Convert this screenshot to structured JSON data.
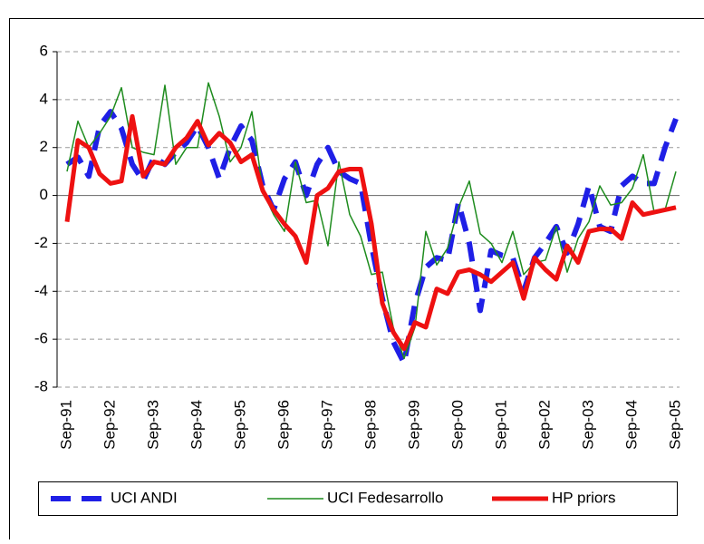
{
  "chart_data": {
    "type": "line",
    "categories": [
      "Sep-91",
      null,
      null,
      null,
      "Sep-92",
      null,
      null,
      null,
      "Sep-93",
      null,
      null,
      null,
      "Sep-94",
      null,
      null,
      null,
      "Sep-95",
      null,
      null,
      null,
      "Sep-96",
      null,
      null,
      null,
      "Sep-97",
      null,
      null,
      null,
      "Sep-98",
      null,
      null,
      null,
      "Sep-99",
      null,
      null,
      null,
      "Sep-00",
      null,
      null,
      null,
      "Sep-01",
      null,
      null,
      null,
      "Sep-02",
      null,
      null,
      null,
      "Sep-03",
      null,
      null,
      null,
      "Sep-04",
      null,
      null,
      null,
      "Sep-05"
    ],
    "series": [
      {
        "name": "UCI ANDI",
        "color": "#1f1fe6",
        "style": "dashed",
        "values": [
          1.3,
          1.6,
          0.8,
          2.9,
          3.5,
          2.8,
          1.3,
          0.6,
          1.6,
          1.3,
          1.8,
          2.2,
          2.9,
          2.0,
          0.7,
          2.0,
          2.9,
          2.3,
          0.4,
          -0.6,
          0.7,
          1.4,
          0.0,
          1.3,
          2.0,
          1.0,
          0.7,
          0.5,
          -2.1,
          -4.3,
          -6.1,
          -7.0,
          -4.5,
          -3.0,
          -2.6,
          -2.7,
          -0.3,
          -2.0,
          -4.8,
          -2.3,
          -2.5,
          -2.6,
          -4.0,
          -2.6,
          -2.0,
          -1.3,
          -2.4,
          -1.2,
          0.4,
          -1.3,
          -1.5,
          0.4,
          0.8,
          0.5,
          0.5,
          2.0,
          3.2
        ]
      },
      {
        "name": "UCI Fedesarrollo",
        "color": "#1e8c1e",
        "style": "thin",
        "values": [
          1.0,
          3.1,
          2.0,
          2.6,
          3.3,
          4.5,
          2.0,
          1.8,
          1.7,
          4.6,
          1.3,
          2.0,
          2.0,
          4.7,
          3.3,
          1.4,
          2.0,
          3.5,
          0.2,
          -0.8,
          -1.5,
          1.4,
          -0.3,
          -0.2,
          -2.1,
          1.4,
          -0.8,
          -1.7,
          -3.3,
          -3.2,
          -5.5,
          -6.8,
          -5.5,
          -1.5,
          -2.9,
          -2.2,
          -0.5,
          0.6,
          -1.6,
          -2.0,
          -2.8,
          -1.5,
          -3.3,
          -2.8,
          -2.7,
          -1.3,
          -3.2,
          -1.8,
          -1.1,
          0.4,
          -0.4,
          -0.3,
          0.3,
          1.7,
          -0.7,
          -0.6,
          1.0
        ]
      },
      {
        "name": "HP priors",
        "color": "#ee1111",
        "style": "thick",
        "values": [
          -1.1,
          2.3,
          2.0,
          0.9,
          0.5,
          0.6,
          3.3,
          0.8,
          1.4,
          1.3,
          2.0,
          2.4,
          3.1,
          2.1,
          2.6,
          2.2,
          1.4,
          1.7,
          0.2,
          -0.6,
          -1.2,
          -1.7,
          -2.8,
          0.0,
          0.3,
          1.0,
          1.1,
          1.1,
          -1.2,
          -4.5,
          -5.7,
          -6.4,
          -5.3,
          -5.5,
          -3.9,
          -4.1,
          -3.2,
          -3.1,
          -3.3,
          -3.6,
          -3.2,
          -2.8,
          -4.3,
          -2.6,
          -3.1,
          -3.5,
          -2.1,
          -2.8,
          -1.5,
          -1.4,
          -1.4,
          -1.8,
          -0.3,
          -0.8,
          -0.7,
          -0.6,
          -0.5
        ]
      }
    ],
    "ylim": [
      -8,
      6
    ],
    "yticks": [
      -8,
      -6,
      -4,
      -2,
      0,
      2,
      4,
      6
    ],
    "grid": true,
    "legend": "bottom"
  }
}
